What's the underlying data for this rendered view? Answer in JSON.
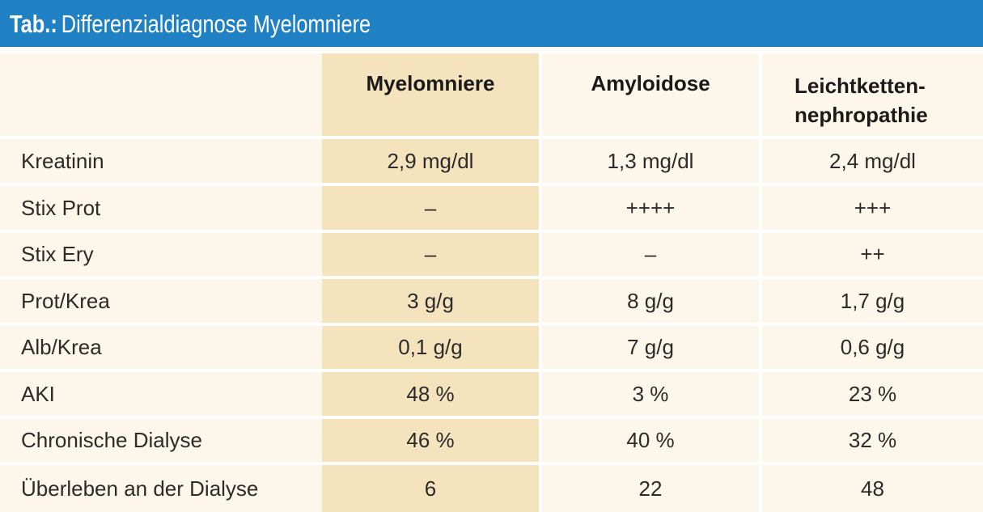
{
  "title": {
    "prefix": "Tab.:",
    "text": "Differenzialdiagnose Myelomniere"
  },
  "table": {
    "header": {
      "col0": "",
      "col1": "Myelomniere",
      "col2": "Amyloidose",
      "col3_line1": "Leichtketten-",
      "col3_line2": "nephropathie"
    },
    "rows": [
      {
        "label": "Kreatinin",
        "c1": "2,9 mg/dl",
        "c2": "1,3 mg/dl",
        "c3": "2,4 mg/dl"
      },
      {
        "label": "Stix Prot",
        "c1": "–",
        "c2": "++++",
        "c3": "+++"
      },
      {
        "label": "Stix Ery",
        "c1": "–",
        "c2": "–",
        "c3": "++"
      },
      {
        "label": "Prot/Krea",
        "c1": "3 g/g",
        "c2": "8 g/g",
        "c3": "1,7 g/g"
      },
      {
        "label": "Alb/Krea",
        "c1": "0,1 g/g",
        "c2": "7 g/g",
        "c3": "0,6 g/g"
      },
      {
        "label": "AKI",
        "c1": "48 %",
        "c2": "3 %",
        "c3": "23 %"
      },
      {
        "label": "Chronische Dialyse",
        "c1": "46 %",
        "c2": "40 %",
        "c3": "32 %"
      },
      {
        "label": "Überleben an der Dialyse",
        "c1": "6",
        "c2": "22",
        "c3": "48"
      }
    ]
  },
  "colors": {
    "title_bar": "#1f81c4",
    "table_bg": "#fdf6ea",
    "highlight_col": "#f5e3bd"
  }
}
